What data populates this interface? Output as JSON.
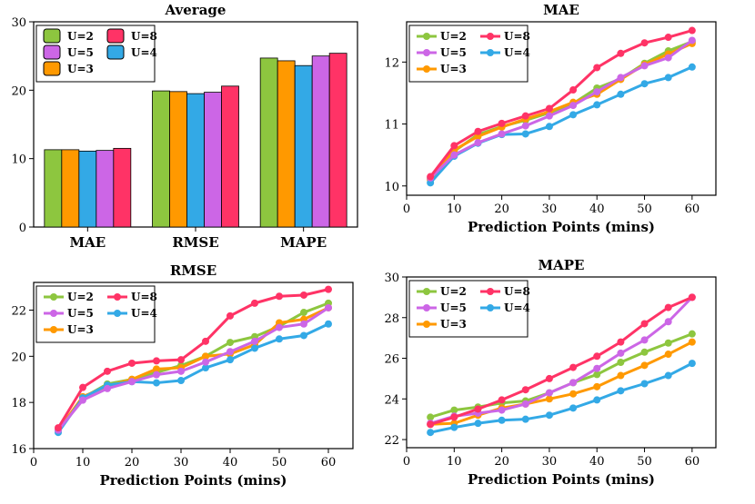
{
  "colors": {
    "U=2": "#8dc63f",
    "U=3": "#ff9900",
    "U=4": "#33a9e6",
    "U=5": "#cc66e6",
    "U=8": "#ff3366"
  },
  "chart_data": [
    {
      "type": "bar",
      "title": "Average",
      "categories": [
        "MAE",
        "RMSE",
        "MAPE"
      ],
      "series": [
        {
          "name": "U=2",
          "values": [
            11.3,
            19.9,
            24.7
          ]
        },
        {
          "name": "U=3",
          "values": [
            11.3,
            19.8,
            24.3
          ]
        },
        {
          "name": "U=4",
          "values": [
            11.1,
            19.5,
            23.6
          ]
        },
        {
          "name": "U=5",
          "values": [
            11.2,
            19.7,
            25.0
          ]
        },
        {
          "name": "U=8",
          "values": [
            11.5,
            20.6,
            25.4
          ]
        }
      ],
      "xlabel": "",
      "ylabel": "",
      "ylim": [
        0,
        30
      ],
      "yticks": [
        0,
        10,
        20,
        30
      ],
      "legend": "top-left"
    },
    {
      "type": "line",
      "title": "MAE",
      "xlabel": "Prediction Points (mins)",
      "ylabel": "",
      "x": [
        5,
        10,
        15,
        20,
        25,
        30,
        35,
        40,
        45,
        50,
        55,
        60
      ],
      "xlim": [
        0,
        65
      ],
      "ylim": [
        9.85,
        12.65
      ],
      "xticks": [
        0,
        10,
        20,
        30,
        40,
        50,
        60
      ],
      "yticks": [
        10,
        11,
        12
      ],
      "legend": "top-left",
      "series": [
        {
          "name": "U=2",
          "values": [
            10.12,
            10.56,
            10.83,
            10.96,
            11.06,
            11.18,
            11.33,
            11.58,
            11.73,
            11.98,
            12.18,
            12.33
          ]
        },
        {
          "name": "U=3",
          "values": [
            10.1,
            10.58,
            10.8,
            10.95,
            11.08,
            11.2,
            11.35,
            11.48,
            11.72,
            11.96,
            12.13,
            12.3
          ]
        },
        {
          "name": "U=4",
          "values": [
            10.05,
            10.48,
            10.69,
            10.83,
            10.84,
            10.96,
            11.15,
            11.31,
            11.48,
            11.65,
            11.75,
            11.92
          ]
        },
        {
          "name": "U=5",
          "values": [
            10.13,
            10.5,
            10.7,
            10.84,
            10.97,
            11.13,
            11.3,
            11.52,
            11.75,
            11.94,
            12.07,
            12.35
          ]
        },
        {
          "name": "U=8",
          "values": [
            10.15,
            10.65,
            10.88,
            11.01,
            11.13,
            11.25,
            11.55,
            11.91,
            12.14,
            12.31,
            12.4,
            12.51
          ]
        }
      ]
    },
    {
      "type": "line",
      "title": "RMSE",
      "xlabel": "Prediction Points (mins)",
      "ylabel": "",
      "x": [
        5,
        10,
        15,
        20,
        25,
        30,
        35,
        40,
        45,
        50,
        55,
        60
      ],
      "xlim": [
        0,
        65
      ],
      "ylim": [
        16,
        23.2
      ],
      "xticks": [
        0,
        10,
        20,
        30,
        40,
        50,
        60
      ],
      "yticks": [
        16,
        18,
        20,
        22
      ],
      "legend": "top-left",
      "series": [
        {
          "name": "U=2",
          "values": [
            16.8,
            18.2,
            18.8,
            19.0,
            19.3,
            19.6,
            20.0,
            20.6,
            20.85,
            21.3,
            21.9,
            22.3
          ]
        },
        {
          "name": "U=3",
          "values": [
            16.8,
            18.25,
            18.7,
            19.0,
            19.45,
            19.5,
            20.0,
            20.1,
            20.5,
            21.45,
            21.6,
            22.1
          ]
        },
        {
          "name": "U=4",
          "values": [
            16.7,
            18.2,
            18.75,
            18.9,
            18.85,
            18.95,
            19.5,
            19.85,
            20.35,
            20.75,
            20.9,
            21.4
          ]
        },
        {
          "name": "U=5",
          "values": [
            16.8,
            18.1,
            18.6,
            18.9,
            19.2,
            19.35,
            19.75,
            20.2,
            20.65,
            21.25,
            21.4,
            22.1
          ]
        },
        {
          "name": "U=8",
          "values": [
            16.9,
            18.65,
            19.35,
            19.7,
            19.8,
            19.85,
            20.65,
            21.75,
            22.3,
            22.6,
            22.65,
            22.9
          ]
        }
      ]
    },
    {
      "type": "line",
      "title": "MAPE",
      "xlabel": "Prediction Points (mins)",
      "ylabel": "",
      "x": [
        5,
        10,
        15,
        20,
        25,
        30,
        35,
        40,
        45,
        50,
        55,
        60
      ],
      "xlim": [
        0,
        65
      ],
      "ylim": [
        21.6,
        30
      ],
      "xticks": [
        0,
        10,
        20,
        30,
        40,
        50,
        60
      ],
      "yticks": [
        22,
        24,
        26,
        28,
        30
      ],
      "legend": "top-left",
      "series": [
        {
          "name": "U=2",
          "values": [
            23.1,
            23.45,
            23.6,
            23.8,
            23.9,
            24.3,
            24.8,
            25.2,
            25.8,
            26.3,
            26.75,
            27.2
          ]
        },
        {
          "name": "U=3",
          "values": [
            22.75,
            22.8,
            23.2,
            23.55,
            23.75,
            24.0,
            24.25,
            24.6,
            25.15,
            25.65,
            26.2,
            26.8
          ]
        },
        {
          "name": "U=4",
          "values": [
            22.35,
            22.6,
            22.8,
            22.95,
            23.0,
            23.2,
            23.55,
            23.95,
            24.4,
            24.75,
            25.15,
            25.75
          ]
        },
        {
          "name": "U=5",
          "values": [
            22.8,
            23.15,
            23.3,
            23.45,
            23.75,
            24.3,
            24.8,
            25.5,
            26.25,
            26.9,
            27.8,
            29.0
          ]
        },
        {
          "name": "U=8",
          "values": [
            22.75,
            23.1,
            23.5,
            23.95,
            24.45,
            25.0,
            25.55,
            26.1,
            26.8,
            27.7,
            28.5,
            29.0
          ]
        }
      ]
    }
  ]
}
